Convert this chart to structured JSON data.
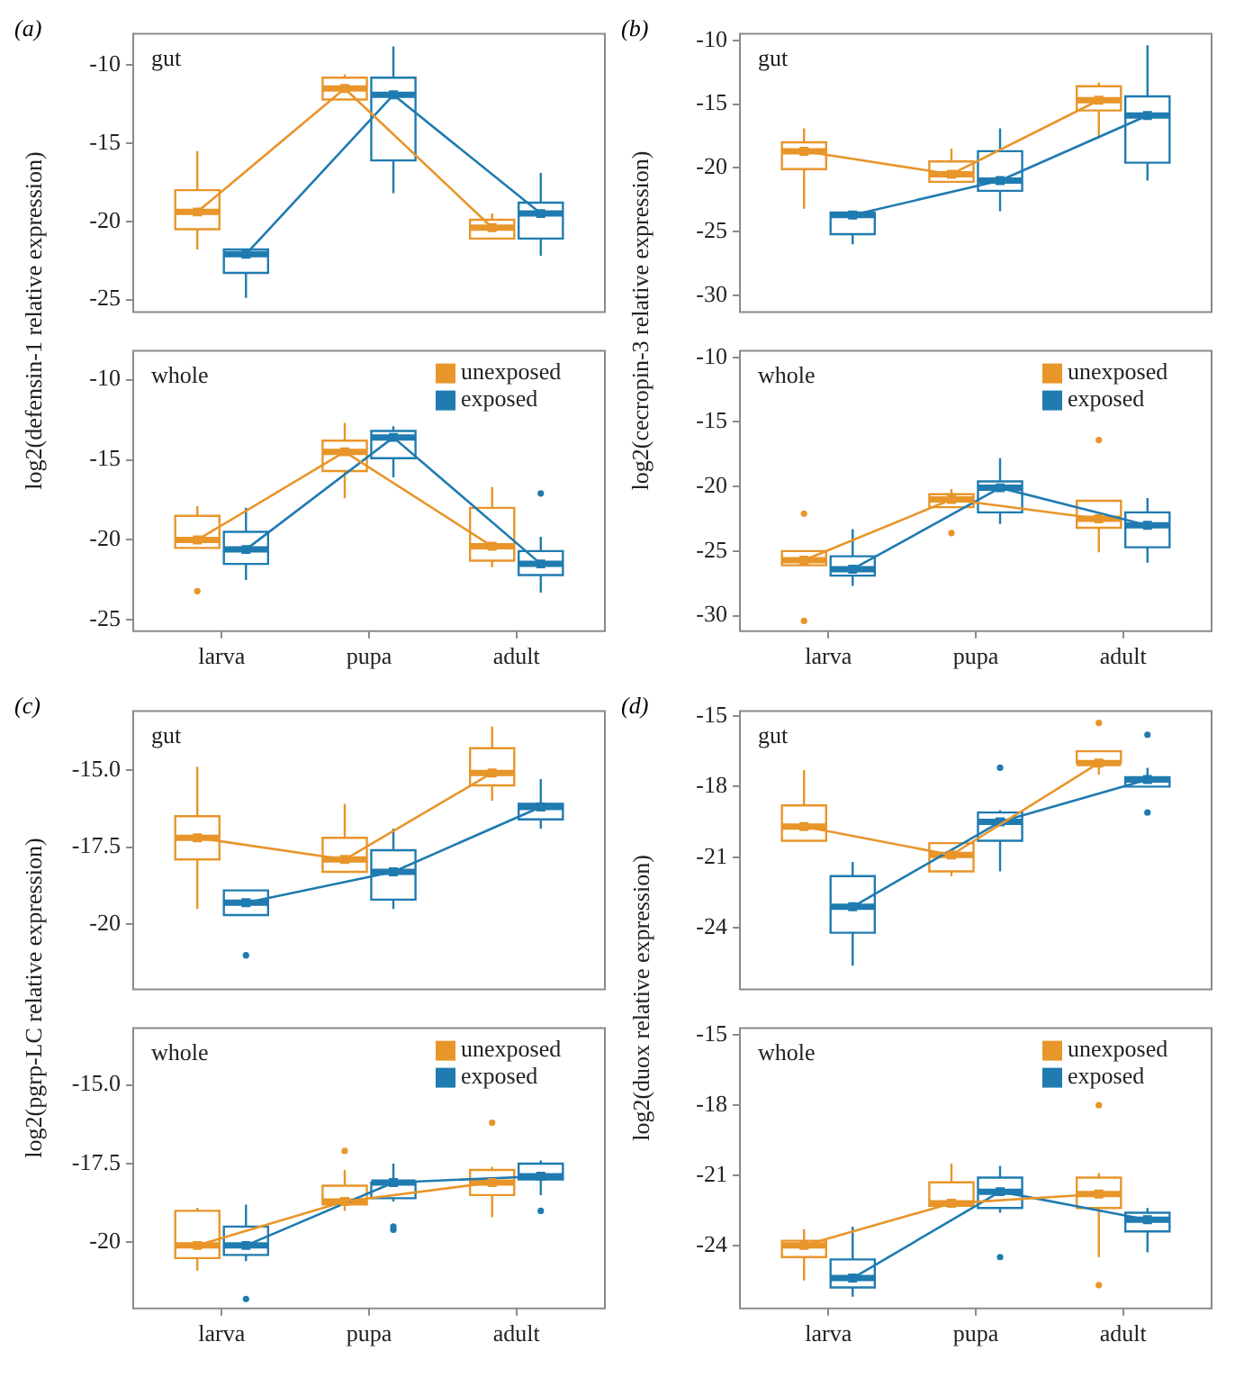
{
  "chart_data": [
    {
      "type": "box",
      "title": "gut",
      "ylabel": "log2(defensin-1 relative expression)",
      "annotations": [
        "(a)"
      ],
      "categories": [
        null,
        null,
        null
      ],
      "ylim": [
        -25.8,
        -8
      ],
      "yticks": [
        -25,
        -20,
        -15,
        -10
      ],
      "grid": false,
      "legend": false,
      "tick_labels": "y",
      "marker": "square",
      "series": [
        {
          "color": "#e8952a",
          "boxes": [
            {
              "low": -21.8,
              "q1": -20.5,
              "median": -19.4,
              "q3": -18,
              "high": -15.5
            },
            {
              "low": -12.2,
              "q1": -12.2,
              "median": -11.5,
              "q3": -10.8,
              "high": -10.6
            },
            {
              "low": -21.1,
              "q1": -21.1,
              "median": -20.4,
              "q3": -19.9,
              "high": -19.5
            }
          ]
        },
        {
          "color": "#1f7bb0",
          "boxes": [
            {
              "low": -24.9,
              "q1": -23.3,
              "median": -22.1,
              "q3": -21.8,
              "high": -21.8
            },
            {
              "low": -18.2,
              "q1": -16.1,
              "median": -11.9,
              "q3": -10.8,
              "high": -8.8
            },
            {
              "low": -22.2,
              "q1": -21.1,
              "median": -19.5,
              "q3": -18.8,
              "high": -16.9
            }
          ]
        },
        {
          "type": "line",
          "color": "#e8952a",
          "values": [
            -19.4,
            -11.5,
            -20.4
          ]
        },
        {
          "type": "line",
          "color": "#1f7bb0",
          "values": [
            -22.1,
            -11.9,
            -19.5
          ]
        }
      ]
    },
    {
      "type": "box",
      "title": "whole",
      "categories": [
        "larva",
        "pupa",
        "adult"
      ],
      "ylim": [
        -25.7,
        -8.2
      ],
      "yticks": [
        -25,
        -20,
        -15,
        -10
      ],
      "grid": false,
      "legend": "top right",
      "marker": "square",
      "series": [
        {
          "name": "unexposed",
          "color": "#e8952a",
          "boxes": [
            {
              "low": -20.5,
              "q1": -20.5,
              "median": -20,
              "q3": -18.5,
              "high": -17.9,
              "outliers": [
                -23.2
              ]
            },
            {
              "low": -17.4,
              "q1": -15.7,
              "median": -14.5,
              "q3": -13.8,
              "high": -12.7
            },
            {
              "low": -21.7,
              "q1": -21.3,
              "median": -20.4,
              "q3": -18,
              "high": -16.7
            }
          ]
        },
        {
          "name": "exposed",
          "color": "#1f7bb0",
          "boxes": [
            {
              "low": -22.5,
              "q1": -21.5,
              "median": -20.6,
              "q3": -19.5,
              "high": -18
            },
            {
              "low": -16.1,
              "q1": -14.9,
              "median": -13.6,
              "q3": -13.2,
              "high": -12.9
            },
            {
              "low": -23.3,
              "q1": -22.2,
              "median": -21.5,
              "q3": -20.7,
              "high": -19.8,
              "outliers": [
                -17.1
              ]
            }
          ]
        },
        {
          "type": "line",
          "color": "#e8952a",
          "values": [
            -20,
            -14.5,
            -20.4
          ]
        },
        {
          "type": "line",
          "color": "#1f7bb0",
          "values": [
            -20.6,
            -13.6,
            -21.5
          ]
        }
      ]
    },
    {
      "type": "box",
      "title": "gut",
      "ylabel": "log2(cecropin-3 relative expression)",
      "annotations": [
        "(b)"
      ],
      "categories": [
        null,
        null,
        null
      ],
      "ylim": [
        -31.3,
        -9.5
      ],
      "yticks": [
        -30,
        -25,
        -20,
        -15,
        -10
      ],
      "grid": false,
      "legend": false,
      "tick_labels": "y",
      "marker": "square",
      "series": [
        {
          "color": "#e8952a",
          "boxes": [
            {
              "low": -23.2,
              "q1": -20.1,
              "median": -18.7,
              "q3": -18,
              "high": -16.9
            },
            {
              "low": -21.1,
              "q1": -21.1,
              "median": -20.5,
              "q3": -19.5,
              "high": -18.5
            },
            {
              "low": -17.7,
              "q1": -15.5,
              "median": -14.7,
              "q3": -13.6,
              "high": -13.3
            }
          ]
        },
        {
          "color": "#1f7bb0",
          "boxes": [
            {
              "low": -26,
              "q1": -25.2,
              "median": -23.7,
              "q3": -23.5,
              "high": -23.5
            },
            {
              "low": -23.4,
              "q1": -21.8,
              "median": -21,
              "q3": -18.7,
              "high": -16.9
            },
            {
              "low": -21,
              "q1": -19.6,
              "median": -15.9,
              "q3": -14.4,
              "high": -10.4
            }
          ]
        },
        {
          "type": "line",
          "color": "#e8952a",
          "values": [
            -18.7,
            -20.5,
            -14.7
          ]
        },
        {
          "type": "line",
          "color": "#1f7bb0",
          "values": [
            -23.7,
            -21,
            -15.9
          ]
        }
      ]
    },
    {
      "type": "box",
      "title": "whole",
      "categories": [
        "larva",
        "pupa",
        "adult"
      ],
      "ylim": [
        -31.2,
        -9.5
      ],
      "yticks": [
        -30,
        -25,
        -20,
        -15,
        -10
      ],
      "grid": false,
      "legend": "top right",
      "marker": "square",
      "series": [
        {
          "name": "unexposed",
          "color": "#e8952a",
          "boxes": [
            {
              "low": -26.1,
              "q1": -26.1,
              "median": -25.7,
              "q3": -25,
              "high": -25,
              "outliers": [
                -22.1,
                -30.4
              ]
            },
            {
              "low": -21.6,
              "q1": -21.6,
              "median": -21,
              "q3": -20.6,
              "high": -20.2,
              "outliers": [
                -23.6
              ]
            },
            {
              "low": -25.1,
              "q1": -23.2,
              "median": -22.5,
              "q3": -21.1,
              "high": -21.1,
              "outliers": [
                -16.4
              ]
            }
          ]
        },
        {
          "name": "exposed",
          "color": "#1f7bb0",
          "boxes": [
            {
              "low": -27.7,
              "q1": -26.9,
              "median": -26.4,
              "q3": -25.4,
              "high": -23.3
            },
            {
              "low": -22.9,
              "q1": -22,
              "median": -20.1,
              "q3": -19.6,
              "high": -17.8
            },
            {
              "low": -25.9,
              "q1": -24.7,
              "median": -23,
              "q3": -22,
              "high": -20.9
            }
          ]
        },
        {
          "type": "line",
          "color": "#e8952a",
          "values": [
            -25.7,
            -21,
            -22.5
          ]
        },
        {
          "type": "line",
          "color": "#1f7bb0",
          "values": [
            -26.4,
            -20.1,
            -23
          ]
        }
      ]
    },
    {
      "type": "box",
      "title": "gut",
      "ylabel": "log2(pgrp-LC relative expression)",
      "annotations": [
        "(c)"
      ],
      "categories": [
        null,
        null,
        null
      ],
      "ylim": [
        -22.1,
        -13.1
      ],
      "yticks": [
        -20,
        -17.5,
        {
          "value": -15,
          "label": "-15.0"
        }
      ],
      "grid": false,
      "legend": false,
      "tick_labels": "y",
      "marker": "square",
      "series": [
        {
          "color": "#e8952a",
          "boxes": [
            {
              "low": -19.5,
              "q1": -17.9,
              "median": -17.2,
              "q3": -16.5,
              "high": -14.9
            },
            {
              "low": -18.3,
              "q1": -18.3,
              "median": -17.9,
              "q3": -17.2,
              "high": -16.1
            },
            {
              "low": -16,
              "q1": -15.5,
              "median": -15.1,
              "q3": -14.3,
              "high": -13.6
            }
          ]
        },
        {
          "color": "#1f7bb0",
          "boxes": [
            {
              "low": -19.7,
              "q1": -19.7,
              "median": -19.3,
              "q3": -18.9,
              "high": -18.9,
              "outliers": [
                -21
              ]
            },
            {
              "low": -19.5,
              "q1": -19.2,
              "median": -18.3,
              "q3": -17.6,
              "high": -16.9
            },
            {
              "low": -16.9,
              "q1": -16.6,
              "median": -16.2,
              "q3": -16.1,
              "high": -15.3
            }
          ]
        },
        {
          "type": "line",
          "color": "#e8952a",
          "values": [
            -17.2,
            -17.9,
            -15.1
          ]
        },
        {
          "type": "line",
          "color": "#1f7bb0",
          "values": [
            -19.3,
            -18.3,
            -16.2
          ]
        }
      ]
    },
    {
      "type": "box",
      "title": "whole",
      "categories": [
        "larva",
        "pupa",
        "adult"
      ],
      "ylim": [
        -22.1,
        -13.2
      ],
      "yticks": [
        -20,
        -17.5,
        {
          "value": -15,
          "label": "-15.0"
        }
      ],
      "grid": false,
      "legend": "top right",
      "marker": "square",
      "series": [
        {
          "name": "unexposed",
          "color": "#e8952a",
          "boxes": [
            {
              "low": -20.9,
              "q1": -20.5,
              "median": -20.1,
              "q3": -19,
              "high": -18.9
            },
            {
              "low": -19,
              "q1": -18.8,
              "median": -18.7,
              "q3": -18.2,
              "high": -17.7,
              "outliers": [
                -17.1
              ]
            },
            {
              "low": -19.2,
              "q1": -18.5,
              "median": -18.1,
              "q3": -17.7,
              "high": -17.6,
              "outliers": [
                -16.2
              ]
            }
          ]
        },
        {
          "name": "exposed",
          "color": "#1f7bb0",
          "boxes": [
            {
              "low": -20.6,
              "q1": -20.4,
              "median": -20.1,
              "q3": -19.5,
              "high": -18.8,
              "outliers": [
                -21.8
              ]
            },
            {
              "low": -18.7,
              "q1": -18.6,
              "median": -18.1,
              "q3": -18.1,
              "high": -17.5,
              "outliers": [
                -19.5,
                -19.6
              ]
            },
            {
              "low": -18.5,
              "q1": -18,
              "median": -17.9,
              "q3": -17.5,
              "high": -17.4,
              "outliers": [
                -19
              ]
            }
          ]
        },
        {
          "type": "line",
          "color": "#e8952a",
          "values": [
            -20.1,
            -18.7,
            -18.1
          ]
        },
        {
          "type": "line",
          "color": "#1f7bb0",
          "values": [
            -20.1,
            -18.1,
            -17.9
          ]
        }
      ]
    },
    {
      "type": "box",
      "title": "gut",
      "ylabel": "log2(duox relative expression)",
      "annotations": [
        "(d)"
      ],
      "categories": [
        null,
        null,
        null
      ],
      "ylim": [
        -26.6,
        -14.8
      ],
      "yticks": [
        -24,
        -21,
        -18,
        -15
      ],
      "grid": false,
      "legend": false,
      "tick_labels": "y",
      "marker": "square",
      "series": [
        {
          "color": "#e8952a",
          "boxes": [
            {
              "low": -20.3,
              "q1": -20.3,
              "median": -19.7,
              "q3": -18.8,
              "high": -17.3
            },
            {
              "low": -21.8,
              "q1": -21.6,
              "median": -20.9,
              "q3": -20.4,
              "high": -20.4
            },
            {
              "low": -17.5,
              "q1": -17,
              "median": -17,
              "q3": -16.5,
              "high": -16.5,
              "outliers": [
                -15.3
              ]
            }
          ]
        },
        {
          "color": "#1f7bb0",
          "boxes": [
            {
              "low": -25.6,
              "q1": -24.2,
              "median": -23.1,
              "q3": -21.8,
              "high": -21.2
            },
            {
              "low": -21.6,
              "q1": -20.3,
              "median": -19.5,
              "q3": -19.1,
              "high": -19,
              "outliers": [
                -17.2
              ]
            },
            {
              "low": -18,
              "q1": -18,
              "median": -17.7,
              "q3": -17.6,
              "high": -17.2,
              "outliers": [
                -15.8,
                -19.1
              ]
            }
          ]
        },
        {
          "type": "line",
          "color": "#e8952a",
          "values": [
            -19.7,
            -20.9,
            -17
          ]
        },
        {
          "type": "line",
          "color": "#1f7bb0",
          "values": [
            -23.1,
            -19.5,
            -17.7
          ]
        }
      ]
    },
    {
      "type": "box",
      "title": "whole",
      "categories": [
        "larva",
        "pupa",
        "adult"
      ],
      "ylim": [
        -26.7,
        -14.7
      ],
      "yticks": [
        -24,
        -21,
        -18,
        -15
      ],
      "grid": false,
      "legend": "top right",
      "marker": "square",
      "series": [
        {
          "name": "unexposed",
          "color": "#e8952a",
          "boxes": [
            {
              "low": -25.5,
              "q1": -24.5,
              "median": -24,
              "q3": -23.8,
              "high": -23.3
            },
            {
              "low": -22.3,
              "q1": -22.3,
              "median": -22.2,
              "q3": -21.3,
              "high": -20.5
            },
            {
              "low": -24.5,
              "q1": -22.4,
              "median": -21.8,
              "q3": -21.1,
              "high": -20.9,
              "outliers": [
                -18,
                -25.7
              ]
            }
          ]
        },
        {
          "name": "exposed",
          "color": "#1f7bb0",
          "boxes": [
            {
              "low": -26.2,
              "q1": -25.8,
              "median": -25.4,
              "q3": -24.6,
              "high": -23.2
            },
            {
              "low": -22.6,
              "q1": -22.4,
              "median": -21.7,
              "q3": -21.1,
              "high": -20.6,
              "outliers": [
                -24.5
              ]
            },
            {
              "low": -24.3,
              "q1": -23.4,
              "median": -22.9,
              "q3": -22.6,
              "high": -22.4
            }
          ]
        },
        {
          "type": "line",
          "color": "#e8952a",
          "values": [
            -24,
            -22.2,
            -21.8
          ]
        },
        {
          "type": "line",
          "color": "#1f7bb0",
          "values": [
            -25.4,
            -21.7,
            -22.9
          ]
        }
      ]
    }
  ]
}
